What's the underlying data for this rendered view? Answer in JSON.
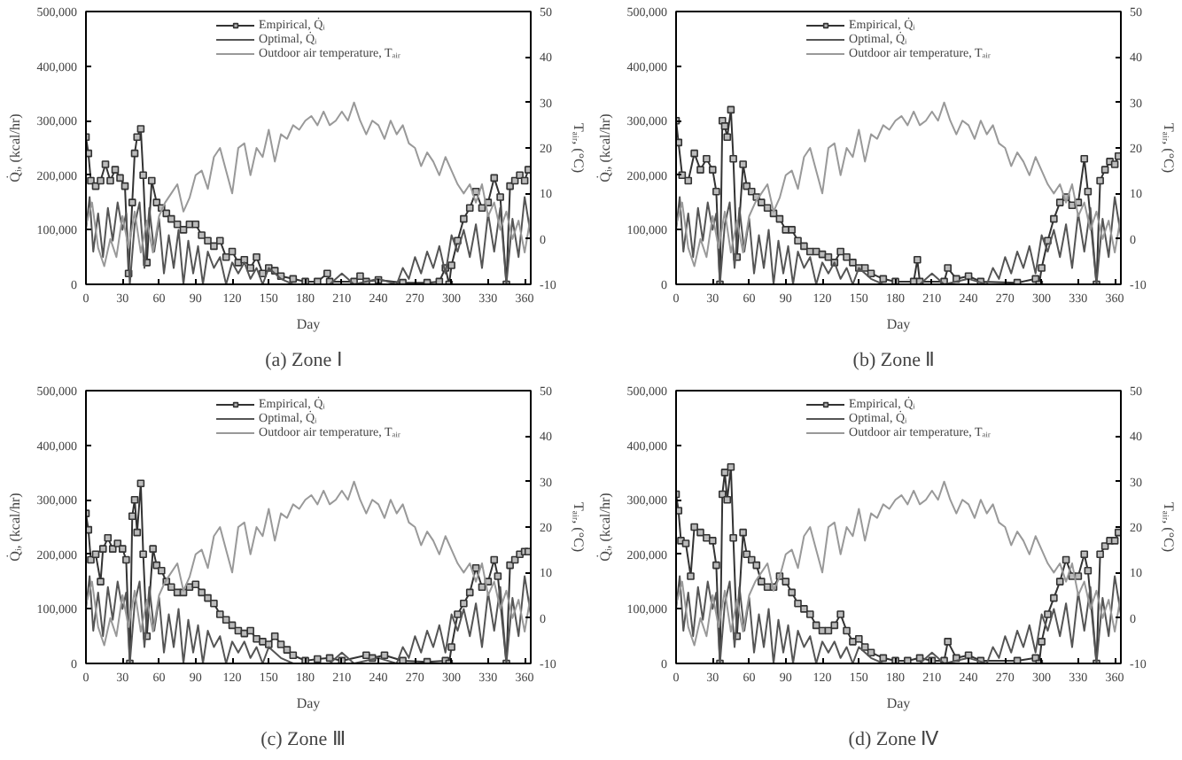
{
  "chart_data": [
    {
      "type": "line",
      "title": "(a)  Zone  Ⅰ",
      "xlabel": "Day",
      "ylabel": "Q̇ᵢ, (kcal/hr)",
      "y2label": "Tₐᵢᵣ, (°C)",
      "legend": "top",
      "grid": false,
      "xlim": [
        0,
        365
      ],
      "xticks": [
        0,
        30,
        60,
        90,
        120,
        150,
        180,
        210,
        240,
        270,
        300,
        330,
        360
      ],
      "ylim": [
        0,
        500000
      ],
      "yticks": [
        0,
        {
          "value": 100000,
          "label": "100,000"
        },
        {
          "value": 200000,
          "label": "200,000"
        },
        {
          "value": 300000,
          "label": "300,000"
        },
        {
          "value": 400000,
          "label": "400,000"
        },
        {
          "value": 500000,
          "label": "500,000"
        }
      ],
      "y2lim": [
        -10,
        50
      ],
      "y2ticks": [
        -10,
        0,
        10,
        20,
        30,
        40,
        50
      ],
      "series": [
        {
          "name": "Empirical, Q̇ᵢ",
          "color": "#333333",
          "marker": "square",
          "x": [
            0,
            2,
            4,
            8,
            12,
            16,
            20,
            24,
            28,
            32,
            35,
            38,
            40,
            42,
            45,
            47,
            50,
            54,
            58,
            62,
            66,
            70,
            75,
            80,
            85,
            90,
            95,
            100,
            105,
            110,
            115,
            120,
            125,
            130,
            135,
            140,
            145,
            150,
            155,
            160,
            170,
            180,
            190,
            198,
            200,
            220,
            225,
            230,
            240,
            260,
            280,
            290,
            295,
            298,
            300,
            305,
            310,
            315,
            320,
            325,
            330,
            335,
            340,
            345,
            348,
            352,
            356,
            360,
            363
          ],
          "values": [
            270000,
            240000,
            190000,
            180000,
            190000,
            220000,
            190000,
            210000,
            195000,
            180000,
            20000,
            150000,
            240000,
            270000,
            285000,
            200000,
            40000,
            190000,
            150000,
            140000,
            130000,
            120000,
            110000,
            100000,
            110000,
            110000,
            90000,
            80000,
            70000,
            80000,
            50000,
            60000,
            40000,
            45000,
            30000,
            50000,
            20000,
            30000,
            25000,
            15000,
            10000,
            5000,
            5000,
            20000,
            5000,
            5000,
            15000,
            5000,
            8000,
            3000,
            3000,
            5000,
            30000,
            0,
            35000,
            80000,
            120000,
            140000,
            170000,
            140000,
            150000,
            195000,
            160000,
            0,
            180000,
            190000,
            200000,
            190000,
            210000
          ]
        },
        {
          "name": "Optimal, Q̇ᵢ",
          "color": "#555555",
          "marker": "none",
          "x": [
            0,
            3,
            6,
            10,
            14,
            18,
            22,
            26,
            30,
            33,
            36,
            40,
            44,
            48,
            52,
            56,
            60,
            64,
            68,
            72,
            76,
            80,
            84,
            88,
            92,
            96,
            100,
            105,
            110,
            115,
            120,
            125,
            130,
            135,
            140,
            145,
            150,
            160,
            170,
            180,
            200,
            210,
            220,
            240,
            255,
            260,
            265,
            270,
            275,
            280,
            285,
            290,
            295,
            300,
            305,
            310,
            315,
            320,
            325,
            330,
            335,
            340,
            345,
            350,
            355,
            360,
            365
          ],
          "values": [
            100000,
            160000,
            60000,
            130000,
            50000,
            140000,
            80000,
            150000,
            100000,
            130000,
            0,
            110000,
            150000,
            30000,
            140000,
            60000,
            120000,
            20000,
            90000,
            30000,
            100000,
            0,
            80000,
            20000,
            70000,
            0,
            60000,
            30000,
            50000,
            0,
            40000,
            20000,
            40000,
            10000,
            30000,
            0,
            30000,
            10000,
            0,
            0,
            0,
            20000,
            0,
            10000,
            0,
            30000,
            10000,
            50000,
            20000,
            60000,
            30000,
            70000,
            20000,
            90000,
            60000,
            100000,
            50000,
            110000,
            30000,
            130000,
            60000,
            140000,
            0,
            120000,
            50000,
            160000,
            90000
          ]
        },
        {
          "name": "Outdoor air temperature, Tₐᵢᵣ",
          "color": "#999999",
          "marker": "none",
          "axis": "y2",
          "x": [
            0,
            5,
            10,
            15,
            20,
            25,
            30,
            35,
            40,
            45,
            50,
            55,
            60,
            65,
            70,
            75,
            80,
            85,
            90,
            95,
            100,
            105,
            110,
            115,
            120,
            125,
            130,
            135,
            140,
            145,
            150,
            155,
            160,
            165,
            170,
            175,
            180,
            185,
            190,
            195,
            200,
            205,
            210,
            215,
            220,
            225,
            230,
            235,
            240,
            245,
            250,
            255,
            260,
            265,
            270,
            275,
            280,
            285,
            290,
            295,
            300,
            305,
            310,
            315,
            320,
            325,
            330,
            335,
            340,
            345,
            350,
            355,
            360,
            365
          ],
          "values": [
            3,
            8,
            -2,
            -6,
            0,
            -4,
            5,
            -2,
            6,
            -3,
            4,
            -3,
            5,
            8,
            10,
            12,
            6,
            9,
            14,
            15,
            11,
            18,
            20,
            15,
            10,
            20,
            21,
            14,
            20,
            18,
            24,
            17,
            23,
            22,
            25,
            24,
            26,
            27,
            25,
            28,
            25,
            26,
            28,
            26,
            30,
            26,
            23,
            26,
            25,
            22,
            26,
            23,
            25,
            21,
            20,
            16,
            19,
            17,
            14,
            18,
            15,
            12,
            10,
            12,
            8,
            12,
            5,
            8,
            2,
            6,
            0,
            4,
            -3,
            5
          ]
        }
      ]
    },
    {
      "type": "line",
      "title": "(b)  Zone  Ⅱ",
      "xlabel": "Day",
      "ylabel": "Q̇ᵢ, (kcal/hr)",
      "y2label": "Tₐᵢᵣ, (°C)",
      "legend": "top",
      "grid": false,
      "xlim": [
        0,
        365
      ],
      "xticks": [
        0,
        30,
        60,
        90,
        120,
        150,
        180,
        210,
        240,
        270,
        300,
        330,
        360
      ],
      "ylim": [
        0,
        500000
      ],
      "yticks": [
        0,
        {
          "value": 100000,
          "label": "100,000"
        },
        {
          "value": 200000,
          "label": "200,000"
        },
        {
          "value": 300000,
          "label": "300,000"
        },
        {
          "value": 400000,
          "label": "400,000"
        },
        {
          "value": 500000,
          "label": "500,000"
        }
      ],
      "y2lim": [
        -10,
        50
      ],
      "y2ticks": [
        -10,
        0,
        10,
        20,
        30,
        40,
        50
      ],
      "series": [
        {
          "name": "Empirical, Q̇ᵢ",
          "color": "#333333",
          "marker": "square",
          "x": [
            0,
            2,
            5,
            10,
            15,
            20,
            25,
            30,
            33,
            36,
            38,
            40,
            42,
            45,
            47,
            50,
            55,
            58,
            62,
            66,
            70,
            75,
            80,
            85,
            90,
            95,
            100,
            105,
            110,
            115,
            120,
            125,
            130,
            135,
            140,
            145,
            150,
            155,
            160,
            170,
            180,
            195,
            198,
            200,
            220,
            223,
            230,
            240,
            250,
            280,
            295,
            298,
            300,
            305,
            310,
            315,
            320,
            325,
            330,
            335,
            338,
            345,
            348,
            352,
            356,
            360,
            363
          ],
          "values": [
            300000,
            260000,
            200000,
            190000,
            240000,
            210000,
            230000,
            210000,
            170000,
            0,
            300000,
            290000,
            270000,
            320000,
            230000,
            50000,
            220000,
            180000,
            170000,
            160000,
            150000,
            140000,
            130000,
            120000,
            100000,
            100000,
            80000,
            70000,
            60000,
            60000,
            55000,
            50000,
            40000,
            60000,
            50000,
            40000,
            30000,
            30000,
            20000,
            10000,
            5000,
            5000,
            45000,
            5000,
            5000,
            30000,
            10000,
            15000,
            5000,
            3000,
            10000,
            0,
            30000,
            80000,
            120000,
            150000,
            160000,
            145000,
            150000,
            230000,
            170000,
            0,
            190000,
            210000,
            225000,
            220000,
            235000
          ]
        },
        {
          "name": "Optimal, Q̇ᵢ",
          "color": "#555555",
          "marker": "none",
          "x": [
            0,
            3,
            6,
            10,
            14,
            18,
            22,
            26,
            30,
            33,
            36,
            40,
            44,
            48,
            52,
            56,
            60,
            64,
            68,
            72,
            76,
            80,
            84,
            88,
            92,
            96,
            100,
            105,
            110,
            115,
            120,
            125,
            130,
            135,
            140,
            145,
            150,
            160,
            170,
            180,
            200,
            210,
            220,
            240,
            255,
            260,
            265,
            270,
            275,
            280,
            285,
            290,
            295,
            300,
            305,
            310,
            315,
            320,
            325,
            330,
            335,
            340,
            345,
            350,
            355,
            360,
            365
          ],
          "values": [
            100000,
            160000,
            60000,
            130000,
            50000,
            140000,
            80000,
            150000,
            100000,
            130000,
            0,
            110000,
            150000,
            30000,
            140000,
            60000,
            120000,
            20000,
            90000,
            30000,
            100000,
            0,
            80000,
            20000,
            70000,
            0,
            60000,
            30000,
            50000,
            0,
            40000,
            20000,
            40000,
            10000,
            30000,
            0,
            30000,
            10000,
            0,
            0,
            0,
            20000,
            0,
            10000,
            0,
            30000,
            10000,
            50000,
            20000,
            60000,
            30000,
            70000,
            20000,
            90000,
            60000,
            100000,
            50000,
            110000,
            30000,
            130000,
            60000,
            140000,
            0,
            120000,
            50000,
            160000,
            90000
          ]
        },
        {
          "name": "Outdoor air temperature, Tₐᵢᵣ",
          "color": "#999999",
          "marker": "none",
          "axis": "y2",
          "x": [
            0,
            5,
            10,
            15,
            20,
            25,
            30,
            35,
            40,
            45,
            50,
            55,
            60,
            65,
            70,
            75,
            80,
            85,
            90,
            95,
            100,
            105,
            110,
            115,
            120,
            125,
            130,
            135,
            140,
            145,
            150,
            155,
            160,
            165,
            170,
            175,
            180,
            185,
            190,
            195,
            200,
            205,
            210,
            215,
            220,
            225,
            230,
            235,
            240,
            245,
            250,
            255,
            260,
            265,
            270,
            275,
            280,
            285,
            290,
            295,
            300,
            305,
            310,
            315,
            320,
            325,
            330,
            335,
            340,
            345,
            350,
            355,
            360,
            365
          ],
          "values": [
            3,
            8,
            -2,
            -6,
            0,
            -4,
            5,
            -2,
            6,
            -3,
            4,
            -3,
            5,
            8,
            10,
            12,
            6,
            9,
            14,
            15,
            11,
            18,
            20,
            15,
            10,
            20,
            21,
            14,
            20,
            18,
            24,
            17,
            23,
            22,
            25,
            24,
            26,
            27,
            25,
            28,
            25,
            26,
            28,
            26,
            30,
            26,
            23,
            26,
            25,
            22,
            26,
            23,
            25,
            21,
            20,
            16,
            19,
            17,
            14,
            18,
            15,
            12,
            10,
            12,
            8,
            12,
            5,
            8,
            2,
            6,
            0,
            4,
            -3,
            5
          ]
        }
      ]
    },
    {
      "type": "line",
      "title": "(c)  Zone  Ⅲ",
      "xlabel": "Day",
      "ylabel": "Q̇ᵢ, (kcal/hr)",
      "y2label": "Tₐᵢᵣ, (°C)",
      "legend": "top",
      "grid": false,
      "xlim": [
        0,
        365
      ],
      "xticks": [
        0,
        30,
        60,
        90,
        120,
        150,
        180,
        210,
        240,
        270,
        300,
        330,
        360
      ],
      "ylim": [
        0,
        500000
      ],
      "yticks": [
        0,
        {
          "value": 100000,
          "label": "100,000"
        },
        {
          "value": 200000,
          "label": "200,000"
        },
        {
          "value": 300000,
          "label": "300,000"
        },
        {
          "value": 400000,
          "label": "400,000"
        },
        {
          "value": 500000,
          "label": "500,000"
        }
      ],
      "y2lim": [
        -10,
        50
      ],
      "y2ticks": [
        -10,
        0,
        10,
        20,
        30,
        40,
        50
      ],
      "series": [
        {
          "name": "Empirical, Q̇ᵢ",
          "color": "#333333",
          "marker": "square",
          "x": [
            0,
            2,
            4,
            8,
            12,
            14,
            18,
            22,
            26,
            30,
            33,
            36,
            38,
            40,
            42,
            45,
            47,
            50,
            55,
            58,
            62,
            66,
            70,
            75,
            80,
            85,
            90,
            95,
            100,
            105,
            110,
            115,
            120,
            125,
            130,
            135,
            140,
            145,
            150,
            155,
            160,
            165,
            170,
            180,
            190,
            200,
            210,
            230,
            235,
            245,
            260,
            280,
            295,
            298,
            300,
            305,
            310,
            315,
            320,
            325,
            330,
            335,
            338,
            345,
            348,
            352,
            356,
            360,
            363
          ],
          "values": [
            275000,
            245000,
            190000,
            200000,
            150000,
            210000,
            230000,
            210000,
            220000,
            210000,
            190000,
            0,
            270000,
            300000,
            240000,
            330000,
            200000,
            50000,
            210000,
            180000,
            170000,
            150000,
            140000,
            130000,
            130000,
            140000,
            145000,
            130000,
            120000,
            110000,
            90000,
            80000,
            70000,
            60000,
            55000,
            60000,
            45000,
            40000,
            35000,
            50000,
            35000,
            25000,
            15000,
            5000,
            8000,
            10000,
            5000,
            15000,
            10000,
            15000,
            5000,
            3000,
            5000,
            0,
            30000,
            90000,
            110000,
            130000,
            175000,
            140000,
            150000,
            190000,
            160000,
            0,
            180000,
            190000,
            200000,
            205000,
            205000
          ]
        },
        {
          "name": "Optimal, Q̇ᵢ",
          "color": "#555555",
          "marker": "none",
          "x": [
            0,
            3,
            6,
            10,
            14,
            18,
            22,
            26,
            30,
            33,
            36,
            40,
            44,
            48,
            52,
            56,
            60,
            64,
            68,
            72,
            76,
            80,
            84,
            88,
            92,
            96,
            100,
            105,
            110,
            115,
            120,
            125,
            130,
            135,
            140,
            145,
            150,
            160,
            170,
            180,
            200,
            210,
            220,
            240,
            255,
            260,
            265,
            270,
            275,
            280,
            285,
            290,
            295,
            300,
            305,
            310,
            315,
            320,
            325,
            330,
            335,
            340,
            345,
            350,
            355,
            360,
            365
          ],
          "values": [
            100000,
            160000,
            60000,
            130000,
            50000,
            140000,
            80000,
            150000,
            100000,
            130000,
            0,
            110000,
            150000,
            30000,
            140000,
            60000,
            120000,
            20000,
            90000,
            30000,
            100000,
            0,
            80000,
            20000,
            70000,
            0,
            60000,
            30000,
            50000,
            0,
            40000,
            20000,
            40000,
            10000,
            30000,
            0,
            30000,
            10000,
            0,
            0,
            0,
            20000,
            0,
            10000,
            0,
            30000,
            10000,
            50000,
            20000,
            60000,
            30000,
            70000,
            20000,
            90000,
            60000,
            100000,
            50000,
            110000,
            30000,
            130000,
            60000,
            140000,
            0,
            120000,
            50000,
            160000,
            90000
          ]
        },
        {
          "name": "Outdoor air temperature, Tₐᵢᵣ",
          "color": "#999999",
          "marker": "none",
          "axis": "y2",
          "x": [
            0,
            5,
            10,
            15,
            20,
            25,
            30,
            35,
            40,
            45,
            50,
            55,
            60,
            65,
            70,
            75,
            80,
            85,
            90,
            95,
            100,
            105,
            110,
            115,
            120,
            125,
            130,
            135,
            140,
            145,
            150,
            155,
            160,
            165,
            170,
            175,
            180,
            185,
            190,
            195,
            200,
            205,
            210,
            215,
            220,
            225,
            230,
            235,
            240,
            245,
            250,
            255,
            260,
            265,
            270,
            275,
            280,
            285,
            290,
            295,
            300,
            305,
            310,
            315,
            320,
            325,
            330,
            335,
            340,
            345,
            350,
            355,
            360,
            365
          ],
          "values": [
            3,
            8,
            -2,
            -6,
            0,
            -4,
            5,
            -2,
            6,
            -3,
            4,
            -3,
            5,
            8,
            10,
            12,
            6,
            9,
            14,
            15,
            11,
            18,
            20,
            15,
            10,
            20,
            21,
            14,
            20,
            18,
            24,
            17,
            23,
            22,
            25,
            24,
            26,
            27,
            25,
            28,
            25,
            26,
            28,
            26,
            30,
            26,
            23,
            26,
            25,
            22,
            26,
            23,
            25,
            21,
            20,
            16,
            19,
            17,
            14,
            18,
            15,
            12,
            10,
            12,
            8,
            12,
            5,
            8,
            2,
            6,
            0,
            4,
            -3,
            5
          ]
        }
      ]
    },
    {
      "type": "line",
      "title": "(d)  Zone  Ⅳ",
      "xlabel": "Day",
      "ylabel": "Q̇ᵢ, (kcal/hr)",
      "y2label": "Tₐᵢᵣ, (°C)",
      "legend": "top",
      "grid": false,
      "xlim": [
        0,
        365
      ],
      "xticks": [
        0,
        30,
        60,
        90,
        120,
        150,
        180,
        210,
        240,
        270,
        300,
        330,
        360
      ],
      "ylim": [
        0,
        500000
      ],
      "yticks": [
        0,
        {
          "value": 100000,
          "label": "100,000"
        },
        {
          "value": 200000,
          "label": "200,000"
        },
        {
          "value": 300000,
          "label": "300,000"
        },
        {
          "value": 400000,
          "label": "400,000"
        },
        {
          "value": 500000,
          "label": "500,000"
        }
      ],
      "y2lim": [
        -10,
        50
      ],
      "y2ticks": [
        -10,
        0,
        10,
        20,
        30,
        40,
        50
      ],
      "series": [
        {
          "name": "Empirical, Q̇ᵢ",
          "color": "#333333",
          "marker": "square",
          "x": [
            0,
            2,
            4,
            8,
            12,
            15,
            20,
            25,
            30,
            33,
            36,
            38,
            40,
            42,
            45,
            47,
            50,
            55,
            58,
            62,
            66,
            70,
            75,
            80,
            85,
            90,
            95,
            100,
            105,
            110,
            115,
            120,
            125,
            130,
            135,
            140,
            145,
            150,
            155,
            160,
            170,
            180,
            190,
            200,
            210,
            220,
            223,
            230,
            240,
            250,
            280,
            295,
            298,
            300,
            305,
            310,
            315,
            320,
            325,
            330,
            335,
            338,
            345,
            348,
            352,
            356,
            360,
            363
          ],
          "values": [
            310000,
            280000,
            225000,
            220000,
            160000,
            250000,
            240000,
            230000,
            225000,
            180000,
            0,
            310000,
            350000,
            300000,
            360000,
            230000,
            50000,
            240000,
            200000,
            190000,
            180000,
            150000,
            140000,
            140000,
            160000,
            150000,
            130000,
            110000,
            100000,
            90000,
            70000,
            60000,
            60000,
            70000,
            90000,
            60000,
            40000,
            45000,
            30000,
            20000,
            10000,
            5000,
            5000,
            10000,
            5000,
            5000,
            40000,
            10000,
            15000,
            5000,
            5000,
            10000,
            0,
            40000,
            90000,
            120000,
            150000,
            190000,
            160000,
            160000,
            200000,
            170000,
            0,
            200000,
            215000,
            225000,
            225000,
            240000
          ]
        },
        {
          "name": "Optimal, Q̇ᵢ",
          "color": "#555555",
          "marker": "none",
          "x": [
            0,
            3,
            6,
            10,
            14,
            18,
            22,
            26,
            30,
            33,
            36,
            40,
            44,
            48,
            52,
            56,
            60,
            64,
            68,
            72,
            76,
            80,
            84,
            88,
            92,
            96,
            100,
            105,
            110,
            115,
            120,
            125,
            130,
            135,
            140,
            145,
            150,
            160,
            170,
            180,
            200,
            210,
            220,
            240,
            255,
            260,
            265,
            270,
            275,
            280,
            285,
            290,
            295,
            300,
            305,
            310,
            315,
            320,
            325,
            330,
            335,
            340,
            345,
            350,
            355,
            360,
            365
          ],
          "values": [
            100000,
            160000,
            60000,
            130000,
            50000,
            140000,
            80000,
            150000,
            100000,
            130000,
            0,
            110000,
            150000,
            30000,
            140000,
            60000,
            120000,
            20000,
            90000,
            30000,
            100000,
            0,
            80000,
            20000,
            70000,
            0,
            60000,
            30000,
            50000,
            0,
            40000,
            20000,
            40000,
            10000,
            30000,
            0,
            30000,
            10000,
            0,
            0,
            0,
            20000,
            0,
            10000,
            0,
            30000,
            10000,
            50000,
            20000,
            60000,
            30000,
            70000,
            20000,
            90000,
            60000,
            100000,
            50000,
            110000,
            30000,
            130000,
            60000,
            140000,
            0,
            120000,
            50000,
            160000,
            90000
          ]
        },
        {
          "name": "Outdoor air temperature, Tₐᵢᵣ",
          "color": "#999999",
          "marker": "none",
          "axis": "y2",
          "x": [
            0,
            5,
            10,
            15,
            20,
            25,
            30,
            35,
            40,
            45,
            50,
            55,
            60,
            65,
            70,
            75,
            80,
            85,
            90,
            95,
            100,
            105,
            110,
            115,
            120,
            125,
            130,
            135,
            140,
            145,
            150,
            155,
            160,
            165,
            170,
            175,
            180,
            185,
            190,
            195,
            200,
            205,
            210,
            215,
            220,
            225,
            230,
            235,
            240,
            245,
            250,
            255,
            260,
            265,
            270,
            275,
            280,
            285,
            290,
            295,
            300,
            305,
            310,
            315,
            320,
            325,
            330,
            335,
            340,
            345,
            350,
            355,
            360,
            365
          ],
          "values": [
            3,
            8,
            -2,
            -6,
            0,
            -4,
            5,
            -2,
            6,
            -3,
            4,
            -3,
            5,
            8,
            10,
            12,
            6,
            9,
            14,
            15,
            11,
            18,
            20,
            15,
            10,
            20,
            21,
            14,
            20,
            18,
            24,
            17,
            23,
            22,
            25,
            24,
            26,
            27,
            25,
            28,
            25,
            26,
            28,
            26,
            30,
            26,
            23,
            26,
            25,
            22,
            26,
            23,
            25,
            21,
            20,
            16,
            19,
            17,
            14,
            18,
            15,
            12,
            10,
            12,
            8,
            12,
            5,
            8,
            2,
            6,
            0,
            4,
            -3,
            5
          ]
        }
      ]
    }
  ]
}
